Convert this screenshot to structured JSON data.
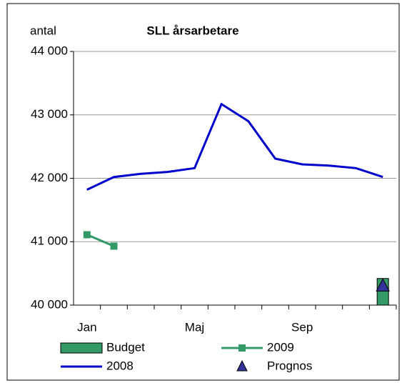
{
  "chart_data": {
    "type": "line",
    "title": "SLL årsarbetare",
    "y_label": "antal",
    "categories": [
      "Jan",
      null,
      null,
      null,
      "Maj",
      null,
      null,
      null,
      "Sep",
      null,
      null,
      null
    ],
    "series": [
      {
        "name": "Budget",
        "type": "bar",
        "color": "#339966",
        "values": [
          null,
          null,
          null,
          null,
          null,
          null,
          null,
          null,
          null,
          null,
          null,
          40420
        ]
      },
      {
        "name": "2009",
        "type": "line",
        "marker": "square",
        "color": "#339966",
        "values": [
          41110,
          40930,
          null,
          null,
          null,
          null,
          null,
          null,
          null,
          null,
          null,
          null
        ]
      },
      {
        "name": "2008",
        "type": "line",
        "color": "#0000cc",
        "values": [
          41820,
          42020,
          42070,
          42100,
          42160,
          43170,
          42900,
          42310,
          42220,
          42200,
          42160,
          42020
        ]
      },
      {
        "name": "Prognos",
        "type": "scatter",
        "marker": "triangle",
        "color": "#333399",
        "values": [
          null,
          null,
          null,
          null,
          null,
          null,
          null,
          null,
          null,
          null,
          null,
          40300
        ]
      }
    ],
    "ylim": [
      40000,
      44000
    ],
    "yticks": [
      {
        "value": 40000,
        "label": "40 000"
      },
      {
        "value": 41000,
        "label": "41 000"
      },
      {
        "value": 42000,
        "label": "42 000"
      },
      {
        "value": 43000,
        "label": "43 000"
      },
      {
        "value": 44000,
        "label": "44 000"
      }
    ],
    "grid": true
  }
}
